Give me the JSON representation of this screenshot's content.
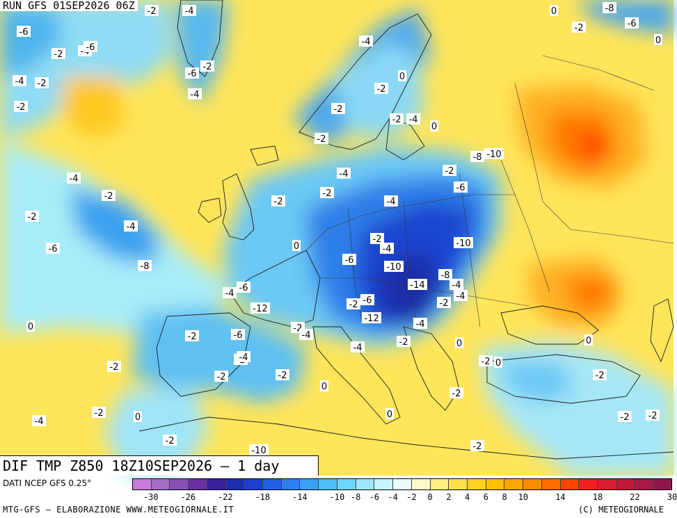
{
  "header": {
    "run_label": "RUN GFS 01SEP2026 06Z"
  },
  "title": {
    "text": "DIF TMP Z850 18Z10SEP2026 — 1 day"
  },
  "footer": {
    "data_source": "DATI NCEP GFS 0.25°",
    "credit": "MTG-GFS — ELABORAZIONE WWW.METEOGIORNALE.IT",
    "copyright": "(C) METEOGIORNALE"
  },
  "colorbar": {
    "colors": [
      "#c77bd6",
      "#a56bc7",
      "#8a4fb5",
      "#6a2fa0",
      "#3a1f9a",
      "#1c2fb0",
      "#1f3fd0",
      "#2060e8",
      "#2e80f0",
      "#3aa0f5",
      "#4ec0f8",
      "#6cd5fb",
      "#9ee6fc",
      "#c8f4fc",
      "#e8fbfb",
      "#fff9c8",
      "#ffef80",
      "#ffe04a",
      "#ffd21f",
      "#ffc000",
      "#ffa500",
      "#ff8a00",
      "#ff6a00",
      "#ff4500",
      "#f02020",
      "#d81e2e",
      "#c01a3a",
      "#a8184a",
      "#90164f"
    ],
    "tick_labels": [
      "-30",
      "-26",
      "-22",
      "-18",
      "-14",
      "-10",
      "-8",
      "-6",
      "-4",
      "-2",
      "0",
      "2",
      "4",
      "6",
      "8",
      "10",
      "14",
      "18",
      "22",
      "30"
    ]
  },
  "contour_labels": [
    "-4",
    "-2",
    "-6",
    "-4",
    "-6",
    "-2",
    "-6",
    "-4",
    "-2",
    "-4",
    "-2",
    "-2",
    "-4",
    "-2",
    "-2",
    "0",
    "-2",
    "-2",
    "-4",
    "0",
    "-4",
    "-2",
    "-4",
    "-2",
    "-6",
    "-8",
    "-4",
    "-2",
    "-2",
    "0",
    "-6",
    "-2",
    "-4",
    "-10",
    "-2",
    "-6",
    "-8",
    "-10",
    "-4",
    "-10",
    "-8",
    "-14",
    "-4",
    "-4",
    "-6",
    "-12",
    "-2",
    "-6",
    "-2",
    "-4",
    "-12",
    "-4",
    "-2",
    "-4",
    "-6",
    "-2",
    "-2",
    "-4",
    "0",
    "-2",
    "0",
    "-2",
    "0",
    "-2",
    "-4",
    "-2",
    "-2",
    "0",
    "-2",
    "-2",
    "0",
    "-2",
    "-2",
    "-4",
    "-2",
    "0",
    "0",
    "-2",
    "-2",
    "-10",
    "-8",
    "-6",
    "-2",
    "0",
    "0"
  ]
}
